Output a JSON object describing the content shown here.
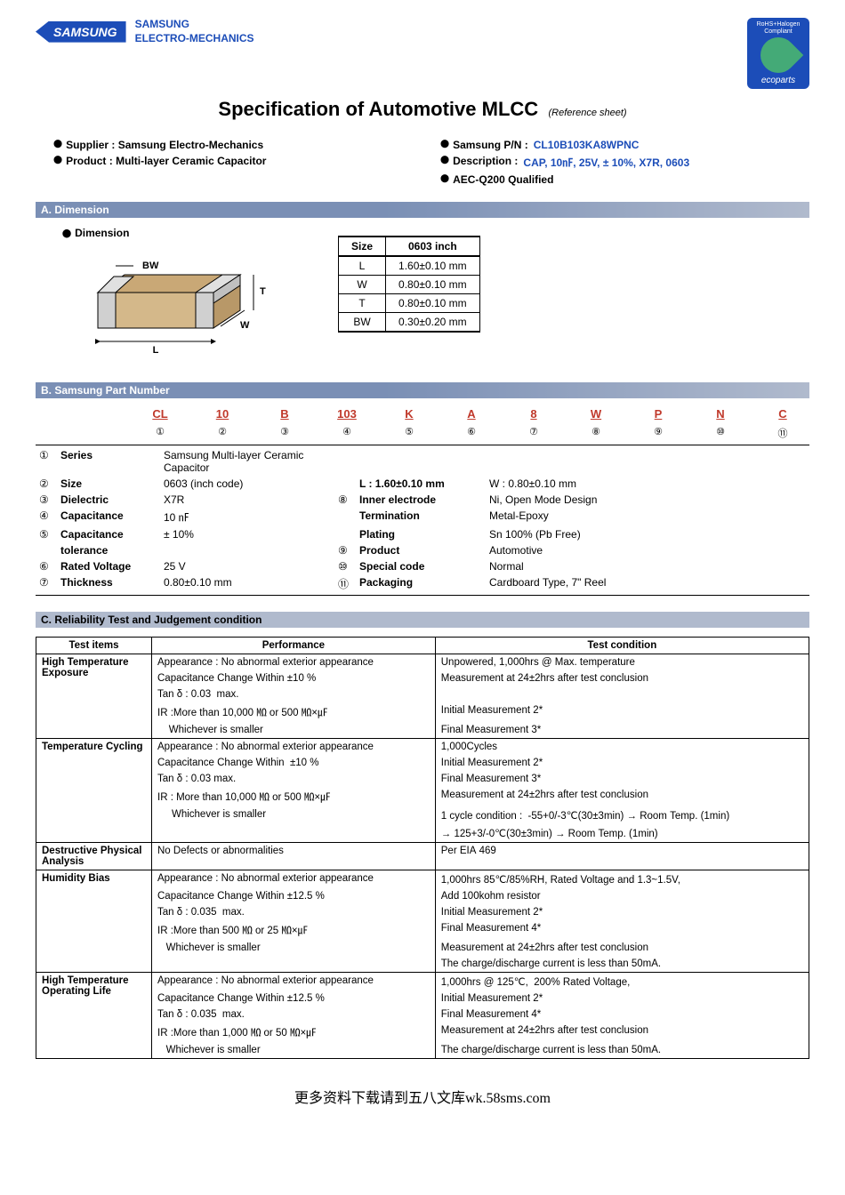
{
  "brand": {
    "logo": "SAMSUNG",
    "line1": "SAMSUNG",
    "line2": "ELECTRO-MECHANICS"
  },
  "eco": {
    "top": "RoHS+Halogen\nCompliant",
    "bottom": "ecoparts"
  },
  "title": "Specification of Automotive MLCC",
  "subtitle": "(Reference sheet)",
  "info": {
    "supplier_lbl": "Supplier : Samsung Electro-Mechanics",
    "pn_lbl": "Samsung P/N :",
    "pn_val": "CL10B103KA8WPNC",
    "product_lbl": "Product : Multi-layer Ceramic Capacitor",
    "desc_lbl": "Description :",
    "desc_val": "CAP, 10㎋, 25V, ± 10%, X7R, 0603",
    "aec_lbl": "AEC-Q200 Qualified"
  },
  "secA": "A. Dimension",
  "dim_lbl": "Dimension",
  "dim_table": {
    "hdr1": "Size",
    "hdr2": "0603 inch",
    "rows": [
      {
        "k": "L",
        "v": "1.60±0.10 mm"
      },
      {
        "k": "W",
        "v": "0.80±0.10 mm"
      },
      {
        "k": "T",
        "v": "0.80±0.10 mm"
      },
      {
        "k": "BW",
        "v": "0.30±0.20 mm"
      }
    ]
  },
  "secB": "B. Samsung Part Number",
  "pn_codes": [
    {
      "code": "CL",
      "num": "①"
    },
    {
      "code": "10",
      "num": "②"
    },
    {
      "code": "B",
      "num": "③"
    },
    {
      "code": "103",
      "num": "④"
    },
    {
      "code": "K",
      "num": "⑤"
    },
    {
      "code": "A",
      "num": "⑥"
    },
    {
      "code": "8",
      "num": "⑦"
    },
    {
      "code": "W",
      "num": "⑧"
    },
    {
      "code": "P",
      "num": "⑨"
    },
    {
      "code": "N",
      "num": "⑩"
    },
    {
      "code": "C",
      "num": "⑪"
    }
  ],
  "pn_rows": [
    {
      "i": "①",
      "l": "Series",
      "v": "Samsung Multi-layer Ceramic Capacitor",
      "i2": "",
      "l2": "",
      "v2": ""
    },
    {
      "i": "②",
      "l": "Size",
      "v": "0603    (inch code)",
      "i2": "",
      "l2": "L :  1.60±0.10 mm",
      "v2": "W : 0.80±0.10 mm"
    },
    {
      "i": "③",
      "l": "Dielectric",
      "v": "X7R",
      "i2": "⑧",
      "l2": "Inner electrode",
      "v2": "Ni, Open Mode Design"
    },
    {
      "i": "④",
      "l": "Capacitance",
      "v": "10    ㎋",
      "i2": "",
      "l2": "Termination",
      "v2": "Metal-Epoxy"
    },
    {
      "i": "⑤",
      "l": "Capacitance",
      "v": "± 10%",
      "i2": "",
      "l2": "Plating",
      "v2": "Sn 100%   (Pb Free)"
    },
    {
      "i": "",
      "l": "tolerance",
      "v": "",
      "i2": "⑨",
      "l2": "Product",
      "v2": "Automotive"
    },
    {
      "i": "⑥",
      "l": "Rated Voltage",
      "v": "25    V",
      "i2": "⑩",
      "l2": "Special code",
      "v2": "Normal"
    },
    {
      "i": "⑦",
      "l": "Thickness",
      "v": "0.80±0.10 mm",
      "i2": "⑪",
      "l2": "Packaging",
      "v2": "Cardboard Type, 7\" Reel"
    }
  ],
  "secC": "C. Reliability Test and Judgement condition",
  "rel_hdr": {
    "c1": "Test items",
    "c2": "Performance",
    "c3": "Test condition"
  },
  "rel": [
    {
      "item": "High Temperature Exposure",
      "perf": [
        "Appearance : No abnormal exterior appearance",
        "Capacitance Change Within ±10 %",
        "Tan δ : 0.03  max.",
        "IR :More than 10,000 ㏁ or 500 ㏁×㎌",
        "    Whichever is smaller"
      ],
      "cond": [
        "Unpowered, 1,000hrs @ Max. temperature",
        "Measurement at 24±2hrs after test conclusion",
        "",
        "Initial Measurement 2*",
        "Final Measurement 3*"
      ]
    },
    {
      "item": "Temperature Cycling",
      "perf": [
        "Appearance : No abnormal exterior appearance",
        "Capacitance Change Within  ±10 %",
        "Tan δ : 0.03 max.",
        "IR : More than 10,000 ㏁ or 500 ㏁×㎌",
        "     Whichever is smaller",
        ""
      ],
      "cond": [
        "1,000Cycles",
        "Initial Measurement 2*",
        "Final Measurement 3*",
        "Measurement at 24±2hrs after test conclusion",
        "1 cycle condition :  -55+0/-3℃(30±3min) → Room Temp. (1min)",
        "→ 125+3/-0℃(30±3min) → Room Temp. (1min)"
      ]
    },
    {
      "item": "Destructive Physical Analysis",
      "perf": [
        "No Defects or abnormalities"
      ],
      "cond": [
        "Per EIA 469"
      ]
    },
    {
      "item": "Humidity Bias",
      "perf": [
        "Appearance : No abnormal exterior appearance",
        "Capacitance Change Within ±12.5 %",
        "Tan δ : 0.035  max.",
        "IR :More than 500 ㏁ or 25 ㏁×㎌",
        "   Whichever is smaller",
        ""
      ],
      "cond": [
        "1,000hrs 85℃/85%RH, Rated Voltage and 1.3~1.5V,",
        "Add 100kohm resistor",
        "Initial Measurement 2*",
        "Final Measurement 4*",
        "Measurement at 24±2hrs after test conclusion",
        "The charge/discharge current is less than 50mA."
      ]
    },
    {
      "item": "High Temperature Operating Life",
      "perf": [
        "Appearance : No abnormal exterior appearance",
        "Capacitance Change Within ±12.5 %",
        "Tan δ : 0.035  max.",
        "IR :More than 1,000 ㏁ or 50 ㏁×㎌",
        "   Whichever is smaller"
      ],
      "cond": [
        "1,000hrs @ 125℃,  200% Rated Voltage,",
        "Initial Measurement 2*",
        "Final Measurement 4*",
        "Measurement at 24±2hrs after test conclusion",
        "The charge/discharge current is less than 50mA."
      ]
    }
  ],
  "footer": "更多资料下载请到五八文库wk.58sms.com"
}
